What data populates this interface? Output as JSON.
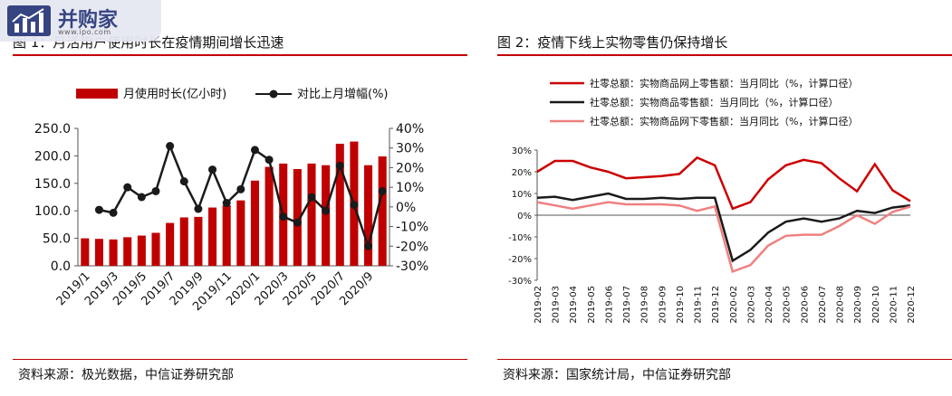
{
  "left": {
    "title": "图 1：月活用户使用时长在疫情期间增长迅速",
    "source": "资料来源：极光数据，中信证券研究部",
    "chart_data": {
      "type": "bar",
      "categories": [
        "2019/1",
        "2019/2",
        "2019/3",
        "2019/4",
        "2019/5",
        "2019/6",
        "2019/7",
        "2019/8",
        "2019/9",
        "2019/10",
        "2019/11",
        "2019/12",
        "2020/1",
        "2020/2",
        "2020/3",
        "2020/4",
        "2020/5",
        "2020/6",
        "2020/7",
        "2020/8",
        "2020/9",
        "2020/10"
      ],
      "tick_labels": [
        "2019/1",
        "2019/3",
        "2019/5",
        "2019/7",
        "2019/9",
        "2019/11",
        "2020/1",
        "2020/3",
        "2020/5",
        "2020/7",
        "2020/9"
      ],
      "series": [
        {
          "name": "月使用时长(亿小时)",
          "axis": "left",
          "type": "bar",
          "color": "#c00000",
          "values": [
            50,
            49,
            48,
            52,
            55,
            60,
            78,
            88,
            89,
            106,
            110,
            119,
            155,
            180,
            186,
            176,
            186,
            183,
            222,
            226,
            183,
            199
          ]
        },
        {
          "name": "对比上月增幅(%)",
          "axis": "right",
          "type": "line",
          "color": "#1a1a1a",
          "values": [
            null,
            -1.5,
            -3,
            10,
            5,
            8,
            31,
            13,
            -1,
            19,
            2,
            9,
            29,
            24,
            -5,
            -8,
            5,
            -2,
            21,
            1,
            -20,
            8
          ]
        }
      ],
      "ylim_left": [
        0,
        250
      ],
      "yticks_left": [
        "0.0",
        "50.0",
        "100.0",
        "150.0",
        "200.0",
        "250.0"
      ],
      "ylim_right": [
        -30,
        40
      ],
      "yticks_right": [
        "-30%",
        "-20%",
        "-10%",
        "0%",
        "10%",
        "20%",
        "30%",
        "40%"
      ],
      "legend_position": "top",
      "grid": false
    }
  },
  "right": {
    "title": "图 2：疫情下线上实物零售仍保持增长",
    "source": "资料来源：国家统计局，中信证券研究部",
    "chart_data": {
      "type": "line",
      "x": [
        "2019-02",
        "2019-03",
        "2019-04",
        "2019-05",
        "2019-06",
        "2019-07",
        "2019-08",
        "2019-09",
        "2019-10",
        "2019-11",
        "2019-12",
        "2020-02",
        "2020-03",
        "2020-04",
        "2020-05",
        "2020-06",
        "2020-07",
        "2020-08",
        "2020-09",
        "2020-10",
        "2020-11",
        "2020-12"
      ],
      "series": [
        {
          "name": "社零总额：实物商品网上零售额：当月同比（%，计算口径）",
          "color": "#cc0000",
          "values": [
            20,
            25,
            25,
            22,
            20,
            17,
            17.5,
            18,
            19,
            26.5,
            23,
            3,
            6,
            16.5,
            23,
            25.5,
            24,
            17,
            11,
            23.5,
            11.5,
            6.5
          ]
        },
        {
          "name": "社零总额：实物商品零售额：当月同比（%，计算口径）",
          "color": "#1a1a1a",
          "values": [
            8,
            8.5,
            7,
            8.5,
            10,
            7.5,
            7.5,
            8,
            7.5,
            8,
            8,
            -21,
            -16,
            -8,
            -3,
            -1.5,
            -3,
            -1.5,
            2,
            1,
            3.5,
            4.5
          ]
        },
        {
          "name": "社零总额：实物商品网下零售额：当月同比（%，计算口径）",
          "color": "#f08080",
          "values": [
            6,
            4.5,
            3,
            4.5,
            6,
            5,
            5,
            5,
            4.5,
            2,
            4,
            -26,
            -23,
            -14,
            -9.5,
            -9,
            -9,
            -5,
            0,
            -4,
            1.5,
            4
          ]
        }
      ],
      "ylim": [
        -30,
        30
      ],
      "yticks": [
        "-30%",
        "-20%",
        "-10%",
        "0%",
        "10%",
        "20%",
        "30%"
      ],
      "legend_position": "top",
      "grid": false
    }
  },
  "watermark": {
    "title": "并购家",
    "url": "www.ipo.com"
  }
}
